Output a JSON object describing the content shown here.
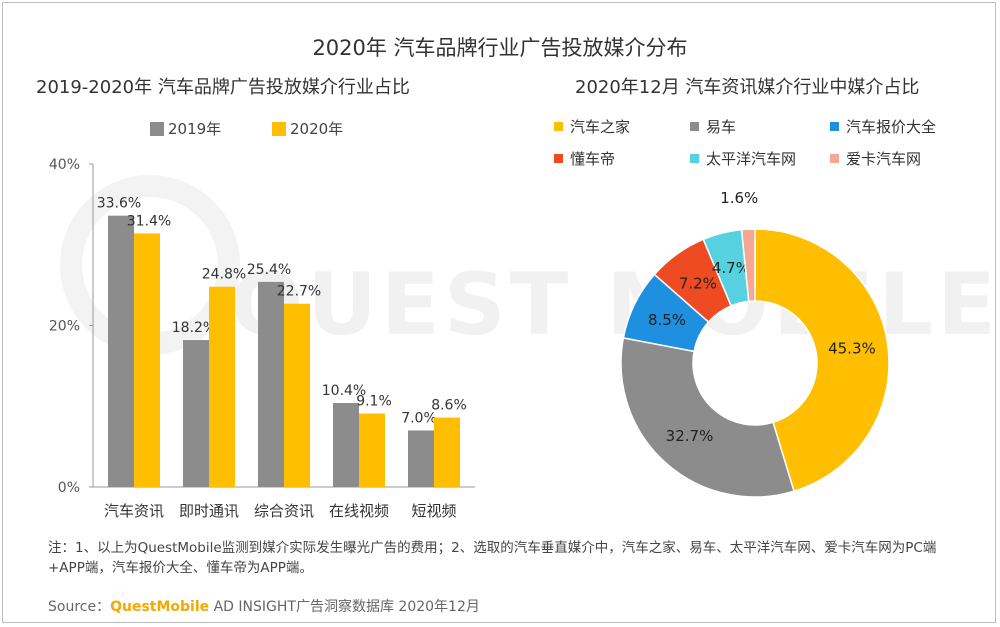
{
  "main_title": "2020年 汽车品牌行业广告投放媒介分布",
  "footer": {
    "note": "注：1、以上为QuestMobile监测到媒介实际发生曝光广告的费用；2、选取的汽车垂直媒介中，汽车之家、易车、太平洋汽车网、爱卡汽车网为PC端+APP端，汽车报价大全、懂车帝为APP端。",
    "source_prefix": "Source：",
    "source_brand": "QuestMobile",
    "source_suffix": " AD INSIGHT广告洞察数据库 2020年12月"
  },
  "watermark_text": "QUEST MOBILE",
  "colors": {
    "series_2019": "#8c8c8c",
    "series_2020": "#ffbf00",
    "axis": "#999999"
  },
  "chart_data": [
    {
      "type": "bar",
      "title": "2019-2020年 汽车品牌广告投放媒介行业占比",
      "categories": [
        "汽车资讯",
        "即时通讯",
        "综合资讯",
        "在线视频",
        "短视频"
      ],
      "series": [
        {
          "name": "2019年",
          "values": [
            33.6,
            18.2,
            25.4,
            10.4,
            7.0
          ],
          "color": "#8c8c8c"
        },
        {
          "name": "2020年",
          "values": [
            31.4,
            24.8,
            22.7,
            9.1,
            8.6
          ],
          "color": "#ffbf00"
        }
      ],
      "value_labels": {
        "2019年": [
          "33.6%",
          "18.2%",
          "25.4%",
          "10.4%",
          "7.0%"
        ],
        "2020年": [
          "31.4%",
          "24.8%",
          "22.7%",
          "9.1%",
          "8.6%"
        ]
      },
      "yticks": [
        "0%",
        "20%",
        "40%"
      ],
      "ytick_values": [
        0,
        20,
        40
      ],
      "ylim": [
        0,
        40
      ],
      "legend_position": "top-left"
    },
    {
      "type": "pie",
      "title": "2020年12月 汽车资讯媒介行业中媒介占比",
      "donut": true,
      "slices": [
        {
          "name": "汽车之家",
          "value": 45.3,
          "label": "45.3%",
          "color": "#ffbf00"
        },
        {
          "name": "易车",
          "value": 32.7,
          "label": "32.7%",
          "color": "#8c8c8c"
        },
        {
          "name": "汽车报价大全",
          "value": 8.5,
          "label": "8.5%",
          "color": "#1f8fe0"
        },
        {
          "name": "懂车帝",
          "value": 7.2,
          "label": "7.2%",
          "color": "#ee4b22"
        },
        {
          "name": "太平洋汽车网",
          "value": 4.7,
          "label": "4.7%",
          "color": "#55d1e0"
        },
        {
          "name": "爱卡汽车网",
          "value": 1.6,
          "label": "1.6%",
          "color": "#f4a793"
        }
      ],
      "legend_position": "top"
    }
  ]
}
